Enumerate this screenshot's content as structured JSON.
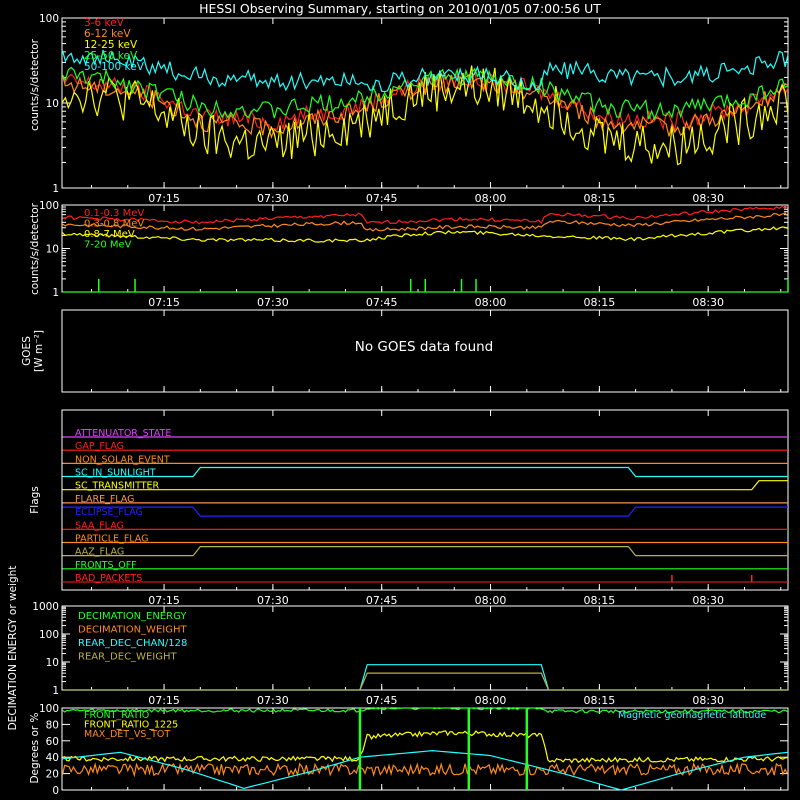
{
  "title": "HESSI Observing Summary, starting on 2010/01/05 07:00:56 UT",
  "colors": {
    "background": "#000000",
    "axes": "#ffffff",
    "red": "#ff2020",
    "orange": "#ff8a1a",
    "yellow": "#ffff00",
    "green": "#22ff22",
    "cyan": "#22ffff",
    "magenta": "#e040ff",
    "blue": "#2222ff",
    "olive": "#b8b048",
    "peach": "#ff9050"
  },
  "time_ticks": [
    "07:15",
    "07:30",
    "07:45",
    "08:00",
    "08:15",
    "08:30"
  ],
  "chart_data": [
    {
      "type": "line",
      "panel": "hxr",
      "ylabel": "counts/s/detector",
      "ylim": [
        1,
        100
      ],
      "yscale": "log",
      "ytick_labels": [
        "1",
        "10",
        "100"
      ],
      "xlim": [
        "07:00:56",
        "08:41:00"
      ],
      "legend_position": "top-left",
      "series": [
        {
          "name": "3-6 keV",
          "color_key": "red",
          "x": [
            "07:01",
            "07:10",
            "07:20",
            "07:30",
            "07:42",
            "07:50",
            "07:56",
            "08:05",
            "08:15",
            "08:25",
            "08:35",
            "08:41"
          ],
          "values": [
            18,
            15,
            7,
            6,
            9,
            16,
            19,
            15,
            7,
            6,
            9,
            15
          ]
        },
        {
          "name": "6-12 keV",
          "color_key": "orange",
          "x": [
            "07:01",
            "07:10",
            "07:20",
            "07:30",
            "07:42",
            "07:50",
            "07:56",
            "08:05",
            "08:15",
            "08:25",
            "08:35",
            "08:41"
          ],
          "values": [
            17,
            14,
            6,
            5,
            8,
            15,
            18,
            14,
            6,
            5,
            8,
            14
          ]
        },
        {
          "name": "12-25 keV",
          "color_key": "yellow",
          "x": [
            "07:01",
            "07:10",
            "07:20",
            "07:30",
            "07:42",
            "07:50",
            "07:56",
            "08:05",
            "08:15",
            "08:25",
            "08:35",
            "08:41"
          ],
          "values": [
            15,
            11,
            4,
            3,
            6,
            13,
            16,
            12,
            4,
            3,
            6,
            12
          ]
        },
        {
          "name": "25-50 keV",
          "color_key": "green",
          "x": [
            "07:01",
            "07:10",
            "07:20",
            "07:30",
            "07:42",
            "07:50",
            "07:56",
            "08:05",
            "08:15",
            "08:25",
            "08:35",
            "08:41"
          ],
          "values": [
            22,
            17,
            9,
            8,
            11,
            18,
            21,
            17,
            9,
            8,
            11,
            17
          ]
        },
        {
          "name": "50-100 keV",
          "color_key": "cyan",
          "x": [
            "07:01",
            "07:10",
            "07:20",
            "07:30",
            "07:42",
            "07:43",
            "07:50",
            "07:56",
            "08:07",
            "08:08",
            "08:15",
            "08:25",
            "08:35",
            "08:41"
          ],
          "values": [
            38,
            30,
            20,
            18,
            19,
            16,
            20,
            22,
            16,
            26,
            22,
            20,
            24,
            34
          ]
        }
      ]
    },
    {
      "type": "line",
      "panel": "gamma",
      "ylabel": "counts/s/detector",
      "ylim": [
        1,
        100
      ],
      "yscale": "log",
      "ytick_labels": [
        "1",
        "10",
        "100"
      ],
      "xlim": [
        "07:00:56",
        "08:41:00"
      ],
      "legend_position": "top-left",
      "series": [
        {
          "name": "0.1-0.3 MeV",
          "color_key": "red",
          "x": [
            "07:01",
            "07:20",
            "07:42",
            "07:43",
            "07:56",
            "08:07",
            "08:08",
            "08:20",
            "08:41"
          ],
          "values": [
            52,
            40,
            60,
            38,
            48,
            42,
            62,
            50,
            90
          ]
        },
        {
          "name": "0.3-0.8 MeV",
          "color_key": "orange",
          "x": [
            "07:01",
            "07:20",
            "07:42",
            "07:43",
            "07:56",
            "08:07",
            "08:08",
            "08:20",
            "08:41"
          ],
          "values": [
            36,
            28,
            40,
            26,
            32,
            30,
            42,
            34,
            60
          ]
        },
        {
          "name": "0.8-7 MeV",
          "color_key": "yellow",
          "x": [
            "07:01",
            "07:20",
            "07:42",
            "07:50",
            "07:56",
            "08:07",
            "08:20",
            "08:41"
          ],
          "values": [
            22,
            16,
            15,
            22,
            24,
            20,
            16,
            30
          ]
        },
        {
          "name": "7-20 MeV",
          "color_key": "green",
          "x": [
            "07:01",
            "08:41"
          ],
          "values": [
            1,
            1
          ]
        }
      ]
    },
    {
      "type": "line",
      "panel": "goes",
      "ylabel": "GOES",
      "ylabel_units": "W m⁻²",
      "message": "No GOES data found",
      "series": []
    },
    {
      "type": "line",
      "panel": "flags",
      "ylabel": "Flags",
      "series": [
        {
          "name": "ATTENUATOR_STATE",
          "color_key": "magenta",
          "x": [
            "07:01",
            "08:41"
          ],
          "values": [
            0,
            0
          ]
        },
        {
          "name": "GAP_FLAG",
          "color_key": "red",
          "x": [
            "07:01",
            "08:41"
          ],
          "values": [
            0,
            0
          ]
        },
        {
          "name": "NON_SOLAR_EVENT",
          "color_key": "orange",
          "x": [
            "07:01",
            "08:41"
          ],
          "values": [
            0,
            0
          ]
        },
        {
          "name": "SC_IN_SUNLIGHT",
          "color_key": "cyan",
          "x": [
            "07:01",
            "07:19",
            "07:20",
            "08:19",
            "08:20",
            "08:41"
          ],
          "values": [
            0,
            0,
            1,
            1,
            0,
            0
          ]
        },
        {
          "name": "SC_TRANSMITTER",
          "color_key": "yellow",
          "x": [
            "07:01",
            "08:36",
            "08:37",
            "08:41"
          ],
          "values": [
            0,
            0,
            1,
            1
          ]
        },
        {
          "name": "FLARE_FLAG",
          "color_key": "peach",
          "x": [
            "07:01",
            "08:41"
          ],
          "values": [
            0,
            0
          ]
        },
        {
          "name": "ECLIPSE_FLAG",
          "color_key": "blue",
          "x": [
            "07:01",
            "07:19",
            "07:20",
            "08:19",
            "08:20",
            "08:41"
          ],
          "values": [
            1,
            1,
            0,
            0,
            1,
            1
          ]
        },
        {
          "name": "SAA_FLAG",
          "color_key": "red",
          "x": [
            "07:01",
            "08:41"
          ],
          "values": [
            0,
            0
          ]
        },
        {
          "name": "PARTICLE_FLAG",
          "color_key": "orange",
          "x": [
            "07:01",
            "08:41"
          ],
          "values": [
            0,
            0
          ]
        },
        {
          "name": "AAZ_FLAG",
          "color_key": "olive",
          "x": [
            "07:01",
            "07:19",
            "07:20",
            "08:19",
            "08:20",
            "08:41"
          ],
          "values": [
            0,
            0,
            1,
            1,
            0,
            0
          ]
        },
        {
          "name": "FRONTS_OFF",
          "color_key": "green",
          "x": [
            "07:01",
            "08:41"
          ],
          "values": [
            0,
            0
          ]
        },
        {
          "name": "BAD_PACKETS",
          "color_key": "red",
          "x": [
            "08:25",
            "08:36"
          ],
          "values": [
            1,
            1
          ]
        }
      ]
    },
    {
      "type": "line",
      "panel": "decimation",
      "ylabel": "DECIMATION ENERGY or weight",
      "ylim": [
        1,
        1000
      ],
      "yscale": "log",
      "ytick_labels": [
        "1",
        "10",
        "100",
        "1000"
      ],
      "series": [
        {
          "name": "DECIMATION_ENERGY",
          "color_key": "green",
          "x": [],
          "values": []
        },
        {
          "name": "DECIMATION_WEIGHT",
          "color_key": "orange",
          "x": [],
          "values": []
        },
        {
          "name": "REAR_DEC_CHAN/128",
          "color_key": "cyan",
          "x": [
            "07:01",
            "07:42",
            "07:43",
            "08:07",
            "08:08",
            "08:41"
          ],
          "values": [
            1,
            1,
            8,
            8,
            1,
            1
          ]
        },
        {
          "name": "REAR_DEC_WEIGHT",
          "color_key": "olive",
          "x": [
            "07:01",
            "07:42",
            "07:43",
            "08:07",
            "08:08",
            "08:41"
          ],
          "values": [
            1,
            1,
            4,
            4,
            1,
            1
          ]
        }
      ]
    },
    {
      "type": "line",
      "panel": "ratios",
      "ylabel": "Degrees or %",
      "ylim": [
        0,
        100
      ],
      "ytick_labels": [
        "0",
        "20",
        "40",
        "60",
        "80",
        "100"
      ],
      "annotation": "Magnetic geomagnetic latitude",
      "series": [
        {
          "name": "FRONT_RATIO",
          "color_key": "green",
          "x": [
            "07:01",
            "07:42",
            "07:43",
            "08:07",
            "08:08",
            "08:41"
          ],
          "values": [
            97,
            97,
            100,
            100,
            96,
            96
          ]
        },
        {
          "name": "FRONT_RATIO_1225",
          "color_key": "yellow",
          "x": [
            "07:01",
            "07:42",
            "07:43",
            "07:55",
            "08:07",
            "08:08",
            "08:41"
          ],
          "values": [
            38,
            38,
            65,
            70,
            66,
            36,
            38
          ]
        },
        {
          "name": "MAX_DET_VS_TOT",
          "color_key": "orange",
          "x": [
            "07:01",
            "08:41"
          ],
          "values": [
            25,
            25
          ]
        },
        {
          "name": "",
          "color_key": "cyan",
          "x": [
            "07:01",
            "07:09",
            "07:18",
            "07:26",
            "07:35",
            "07:42",
            "07:52",
            "08:00",
            "08:10",
            "08:18",
            "08:26",
            "08:35",
            "08:41"
          ],
          "values": [
            38,
            46,
            25,
            2,
            22,
            40,
            48,
            42,
            20,
            0,
            20,
            40,
            46
          ]
        }
      ]
    }
  ]
}
